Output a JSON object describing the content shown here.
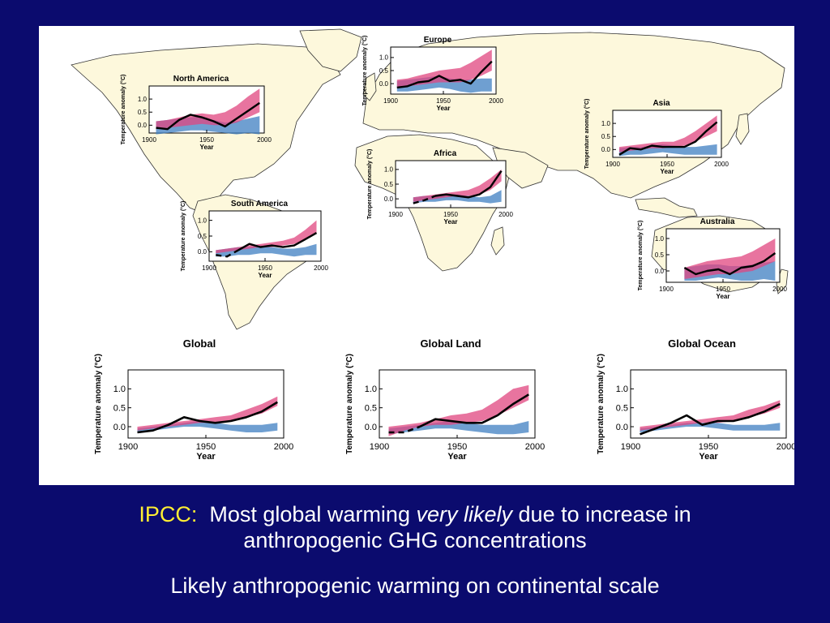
{
  "slide": {
    "caption_prefix": "IPCC:",
    "caption_part1": "Most global warming",
    "caption_italic": "very likely",
    "caption_part2": "due to increase in",
    "caption_line2": "anthropogenic GHG concentrations",
    "caption_line3": "Likely anthropogenic warming on continental scale"
  },
  "colors": {
    "background": "#0b0b6e",
    "land": "#fdf8dc",
    "coast": "#333333",
    "natural_band": "#3f7fc2",
    "anthropogenic_band": "#e0457f",
    "observed_line": "#000000",
    "caption_highlight": "#ffee33"
  },
  "chart_data": [
    {
      "id": "north-america",
      "type": "area",
      "title": "North America",
      "ylabel": "Temperature anomaly (°C)",
      "xlabel": "Year",
      "xticks": [
        "1900",
        "1950",
        "2000"
      ],
      "yticks": [
        "0.0",
        "0.5",
        "1.0"
      ],
      "xlim": [
        1900,
        2000
      ],
      "ylim": [
        -0.3,
        1.5
      ],
      "x": [
        1906,
        1916,
        1926,
        1936,
        1946,
        1956,
        1966,
        1976,
        1986,
        1996
      ],
      "observed": [
        -0.1,
        -0.15,
        0.2,
        0.4,
        0.3,
        0.15,
        -0.05,
        0.25,
        0.55,
        0.85
      ],
      "observed_dashed_until": null,
      "natural_low": [
        -0.35,
        -0.3,
        -0.25,
        -0.2,
        -0.2,
        -0.25,
        -0.3,
        -0.35,
        -0.3,
        -0.35
      ],
      "natural_high": [
        0.15,
        0.2,
        0.25,
        0.3,
        0.35,
        0.2,
        0.1,
        0.15,
        0.25,
        0.35
      ],
      "all_low": [
        -0.15,
        -0.1,
        -0.05,
        0.0,
        0.05,
        0.0,
        0.0,
        0.1,
        0.3,
        0.5
      ],
      "all_high": [
        0.15,
        0.2,
        0.3,
        0.4,
        0.45,
        0.4,
        0.5,
        0.75,
        1.1,
        1.4
      ]
    },
    {
      "id": "europe",
      "type": "area",
      "title": "Europe",
      "ylabel": "Temperature anomaly (°C)",
      "xlabel": "Year",
      "xticks": [
        "1900",
        "1950",
        "2000"
      ],
      "yticks": [
        "0.0",
        "0.5",
        "1.0"
      ],
      "xlim": [
        1900,
        2000
      ],
      "ylim": [
        -0.4,
        1.4
      ],
      "x": [
        1906,
        1916,
        1926,
        1936,
        1946,
        1956,
        1966,
        1976,
        1986,
        1996
      ],
      "observed": [
        -0.15,
        -0.1,
        0.05,
        0.1,
        0.3,
        0.1,
        0.15,
        0.0,
        0.45,
        0.85
      ],
      "observed_dashed_until": null,
      "natural_low": [
        -0.3,
        -0.3,
        -0.25,
        -0.2,
        -0.15,
        -0.2,
        -0.3,
        -0.35,
        -0.3,
        -0.3
      ],
      "natural_high": [
        0.1,
        0.15,
        0.2,
        0.25,
        0.3,
        0.2,
        0.15,
        0.15,
        0.2,
        0.2
      ],
      "all_low": [
        -0.15,
        -0.1,
        -0.05,
        0.0,
        0.05,
        0.05,
        0.05,
        0.15,
        0.3,
        0.5
      ],
      "all_high": [
        0.15,
        0.2,
        0.3,
        0.4,
        0.5,
        0.55,
        0.6,
        0.8,
        1.05,
        1.3
      ]
    },
    {
      "id": "asia",
      "type": "area",
      "title": "Asia",
      "ylabel": "Temperature anomaly (°C)",
      "xlabel": "Year",
      "xticks": [
        "1900",
        "1950",
        "2000"
      ],
      "yticks": [
        "0.0",
        "0.5",
        "1.0"
      ],
      "xlim": [
        1900,
        2000
      ],
      "ylim": [
        -0.3,
        1.5
      ],
      "x": [
        1906,
        1916,
        1926,
        1936,
        1946,
        1956,
        1966,
        1976,
        1986,
        1996
      ],
      "observed": [
        -0.2,
        0.05,
        0.0,
        0.15,
        0.1,
        0.1,
        0.1,
        0.3,
        0.7,
        1.05
      ],
      "observed_dashed_until": null,
      "natural_low": [
        -0.25,
        -0.2,
        -0.2,
        -0.15,
        -0.1,
        -0.15,
        -0.2,
        -0.2,
        -0.2,
        -0.2
      ],
      "natural_high": [
        0.05,
        0.1,
        0.1,
        0.15,
        0.2,
        0.15,
        0.1,
        0.1,
        0.15,
        0.2
      ],
      "all_low": [
        -0.1,
        -0.05,
        0.0,
        0.05,
        0.05,
        0.1,
        0.15,
        0.3,
        0.5,
        0.7
      ],
      "all_high": [
        0.1,
        0.15,
        0.2,
        0.25,
        0.3,
        0.3,
        0.45,
        0.7,
        1.0,
        1.3
      ]
    },
    {
      "id": "africa",
      "type": "area",
      "title": "Africa",
      "ylabel": "Temperature anomaly (°C)",
      "xlabel": "Year",
      "xticks": [
        "1900",
        "1950",
        "2000"
      ],
      "yticks": [
        "0.0",
        "0.5",
        "1.0"
      ],
      "xlim": [
        1900,
        2000
      ],
      "ylim": [
        -0.3,
        1.3
      ],
      "x": [
        1916,
        1926,
        1936,
        1946,
        1956,
        1966,
        1976,
        1986,
        1996
      ],
      "observed": [
        -0.15,
        -0.05,
        0.1,
        0.15,
        0.1,
        0.05,
        0.15,
        0.4,
        0.95
      ],
      "observed_dashed_until": 1936,
      "natural_low": [
        -0.15,
        -0.1,
        -0.1,
        -0.05,
        -0.05,
        -0.1,
        -0.1,
        -0.15,
        -0.1
      ],
      "natural_high": [
        0.05,
        0.1,
        0.1,
        0.15,
        0.15,
        0.1,
        0.05,
        0.1,
        0.3
      ],
      "all_low": [
        -0.1,
        -0.05,
        0.0,
        0.05,
        0.1,
        0.1,
        0.15,
        0.3,
        0.6
      ],
      "all_high": [
        0.05,
        0.1,
        0.15,
        0.2,
        0.25,
        0.3,
        0.45,
        0.7,
        1.0
      ]
    },
    {
      "id": "south-america",
      "type": "area",
      "title": "South America",
      "ylabel": "Temperature anomaly (°C)",
      "xlabel": "Year",
      "xticks": [
        "1900",
        "1950",
        "2000"
      ],
      "yticks": [
        "0.0",
        "0.5",
        "1.0"
      ],
      "xlim": [
        1900,
        2000
      ],
      "ylim": [
        -0.3,
        1.3
      ],
      "x": [
        1906,
        1916,
        1926,
        1936,
        1946,
        1956,
        1966,
        1976,
        1986,
        1996
      ],
      "observed": [
        -0.1,
        -0.15,
        0.05,
        0.25,
        0.15,
        0.2,
        0.15,
        0.2,
        0.4,
        0.6
      ],
      "observed_dashed_until": 1926,
      "natural_low": [
        -0.15,
        -0.15,
        -0.1,
        -0.1,
        -0.05,
        -0.05,
        -0.1,
        -0.15,
        -0.1,
        -0.1
      ],
      "natural_high": [
        0.05,
        0.1,
        0.15,
        0.15,
        0.2,
        0.15,
        0.1,
        0.1,
        0.15,
        0.25
      ],
      "all_low": [
        -0.05,
        0.0,
        0.05,
        0.1,
        0.15,
        0.15,
        0.2,
        0.25,
        0.4,
        0.6
      ],
      "all_high": [
        0.05,
        0.1,
        0.15,
        0.2,
        0.25,
        0.3,
        0.35,
        0.45,
        0.7,
        1.0
      ]
    },
    {
      "id": "australia",
      "type": "area",
      "title": "Australia",
      "ylabel": "Temperature anomaly (°C)",
      "xlabel": "Year",
      "xticks": [
        "1900",
        "1950",
        "2000"
      ],
      "yticks": [
        "0.0",
        "0.5",
        "1.0"
      ],
      "xlim": [
        1900,
        2000
      ],
      "ylim": [
        -0.35,
        1.3
      ],
      "x": [
        1916,
        1926,
        1936,
        1946,
        1956,
        1966,
        1976,
        1986,
        1996
      ],
      "observed": [
        0.1,
        -0.1,
        0.0,
        0.05,
        -0.1,
        0.1,
        0.15,
        0.3,
        0.55
      ],
      "observed_dashed_until": null,
      "natural_low": [
        -0.3,
        -0.3,
        -0.25,
        -0.2,
        -0.25,
        -0.3,
        -0.3,
        -0.25,
        -0.3
      ],
      "natural_high": [
        0.1,
        0.15,
        0.2,
        0.2,
        0.15,
        0.15,
        0.2,
        0.25,
        0.3
      ],
      "all_low": [
        -0.25,
        -0.2,
        -0.15,
        -0.1,
        -0.1,
        -0.05,
        0.0,
        0.15,
        0.3
      ],
      "all_high": [
        0.1,
        0.2,
        0.3,
        0.35,
        0.4,
        0.45,
        0.6,
        0.8,
        1.0
      ]
    },
    {
      "id": "global",
      "type": "area",
      "title": "Global",
      "ylabel": "Temperature anomaly (°C)",
      "xlabel": "Year",
      "xticks": [
        "1900",
        "1950",
        "2000"
      ],
      "yticks": [
        "0.0",
        "0.5",
        "1.0"
      ],
      "xlim": [
        1900,
        2000
      ],
      "ylim": [
        -0.3,
        1.5
      ],
      "x": [
        1906,
        1916,
        1926,
        1936,
        1946,
        1956,
        1966,
        1976,
        1986,
        1996
      ],
      "observed": [
        -0.15,
        -0.1,
        0.05,
        0.25,
        0.15,
        0.1,
        0.15,
        0.25,
        0.4,
        0.65
      ],
      "observed_dashed_until": null,
      "natural_low": [
        -0.15,
        -0.1,
        -0.05,
        0.0,
        0.0,
        -0.05,
        -0.1,
        -0.15,
        -0.15,
        -0.1
      ],
      "natural_high": [
        -0.05,
        0.0,
        0.05,
        0.1,
        0.15,
        0.1,
        0.05,
        0.05,
        0.05,
        0.1
      ],
      "all_low": [
        -0.1,
        -0.05,
        0.0,
        0.05,
        0.1,
        0.1,
        0.15,
        0.25,
        0.35,
        0.55
      ],
      "all_high": [
        0.0,
        0.05,
        0.1,
        0.15,
        0.2,
        0.25,
        0.3,
        0.45,
        0.6,
        0.8
      ]
    },
    {
      "id": "global-land",
      "type": "area",
      "title": "Global Land",
      "ylabel": "Temperature anomaly (°C)",
      "xlabel": "Year",
      "xticks": [
        "1900",
        "1950",
        "2000"
      ],
      "yticks": [
        "0.0",
        "0.5",
        "1.0"
      ],
      "xlim": [
        1900,
        2000
      ],
      "ylim": [
        -0.3,
        1.5
      ],
      "x": [
        1906,
        1916,
        1926,
        1936,
        1946,
        1956,
        1966,
        1976,
        1986,
        1996
      ],
      "observed": [
        -0.15,
        -0.15,
        0.0,
        0.2,
        0.15,
        0.1,
        0.1,
        0.3,
        0.6,
        0.85
      ],
      "observed_dashed_until": 1926,
      "natural_low": [
        -0.2,
        -0.15,
        -0.1,
        -0.05,
        -0.05,
        -0.1,
        -0.15,
        -0.2,
        -0.2,
        -0.15
      ],
      "natural_high": [
        -0.05,
        0.0,
        0.05,
        0.1,
        0.15,
        0.1,
        0.05,
        0.05,
        0.05,
        0.15
      ],
      "all_low": [
        -0.25,
        -0.1,
        0.0,
        0.05,
        0.05,
        0.1,
        0.15,
        0.3,
        0.5,
        0.7
      ],
      "all_high": [
        0.0,
        0.05,
        0.1,
        0.2,
        0.3,
        0.35,
        0.45,
        0.7,
        1.0,
        1.1
      ]
    },
    {
      "id": "global-ocean",
      "type": "area",
      "title": "Global Ocean",
      "ylabel": "Temperature anomaly (°C)",
      "xlabel": "Year",
      "xticks": [
        "1900",
        "1950",
        "2000"
      ],
      "yticks": [
        "0.0",
        "0.5",
        "1.0"
      ],
      "xlim": [
        1900,
        2000
      ],
      "ylim": [
        -0.3,
        1.5
      ],
      "x": [
        1906,
        1916,
        1926,
        1936,
        1946,
        1956,
        1966,
        1976,
        1986,
        1996
      ],
      "observed": [
        -0.2,
        -0.05,
        0.1,
        0.3,
        0.05,
        0.15,
        0.15,
        0.25,
        0.4,
        0.6
      ],
      "observed_dashed_until": null,
      "natural_low": [
        -0.15,
        -0.1,
        -0.05,
        0.0,
        0.0,
        -0.05,
        -0.1,
        -0.1,
        -0.1,
        -0.1
      ],
      "natural_high": [
        -0.05,
        0.0,
        0.05,
        0.1,
        0.1,
        0.1,
        0.05,
        0.05,
        0.05,
        0.1
      ],
      "all_low": [
        -0.1,
        -0.05,
        0.0,
        0.05,
        0.1,
        0.1,
        0.15,
        0.25,
        0.35,
        0.5
      ],
      "all_high": [
        0.0,
        0.05,
        0.1,
        0.15,
        0.2,
        0.25,
        0.3,
        0.45,
        0.55,
        0.7
      ]
    }
  ]
}
